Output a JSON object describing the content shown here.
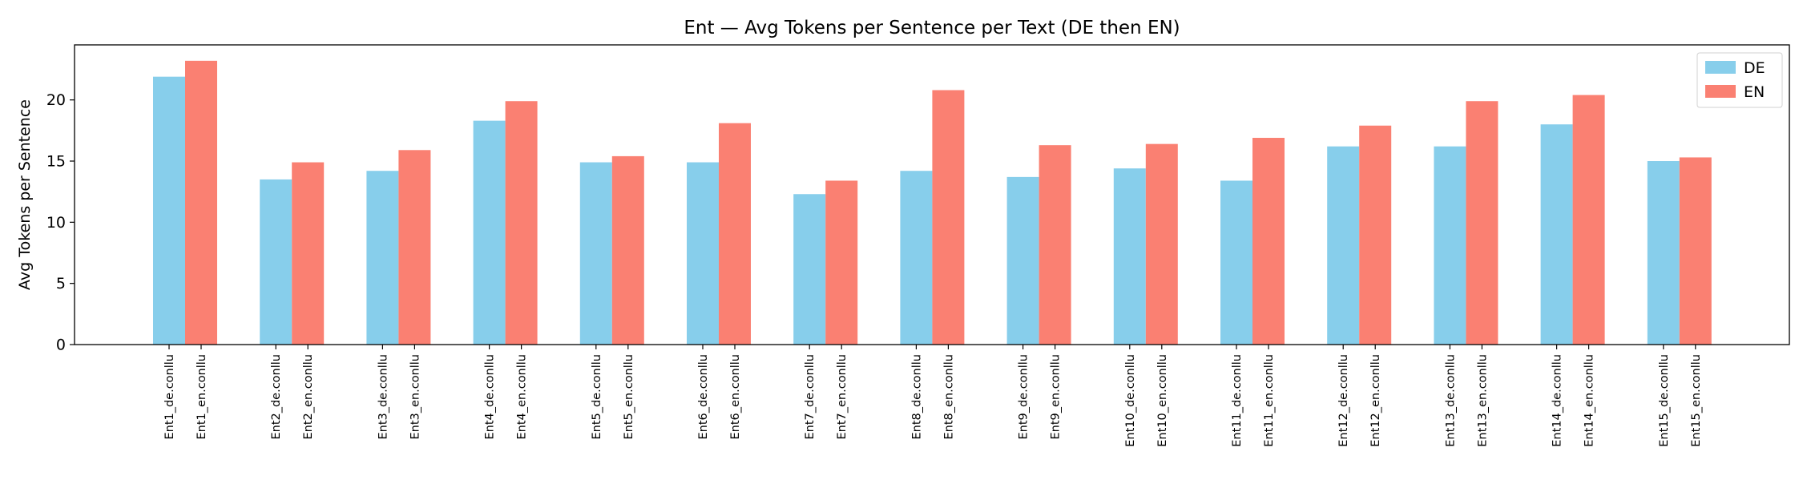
{
  "chart_data": {
    "type": "bar",
    "title": "Ent — Avg Tokens per Sentence per Text (DE then EN)",
    "xlabel": "",
    "ylabel": "Avg Tokens per Sentence",
    "ylim": [
      0,
      24.5
    ],
    "yticks": [
      "0",
      "5",
      "10",
      "15",
      "20"
    ],
    "grid": false,
    "legend_position": "top-right",
    "colors": {
      "DE": "#87CEEB",
      "EN": "#FA8072"
    },
    "texts": [
      "Ent1",
      "Ent2",
      "Ent3",
      "Ent4",
      "Ent5",
      "Ent6",
      "Ent7",
      "Ent8",
      "Ent9",
      "Ent10",
      "Ent11",
      "Ent12",
      "Ent13",
      "Ent14",
      "Ent15"
    ],
    "series": [
      {
        "name": "DE",
        "labels": [
          "Ent1_de.conllu",
          "Ent2_de.conllu",
          "Ent3_de.conllu",
          "Ent4_de.conllu",
          "Ent5_de.conllu",
          "Ent6_de.conllu",
          "Ent7_de.conllu",
          "Ent8_de.conllu",
          "Ent9_de.conllu",
          "Ent10_de.conllu",
          "Ent11_de.conllu",
          "Ent12_de.conllu",
          "Ent13_de.conllu",
          "Ent14_de.conllu",
          "Ent15_de.conllu"
        ],
        "values": [
          21.9,
          13.5,
          14.2,
          18.3,
          14.9,
          14.9,
          12.3,
          14.2,
          13.7,
          14.4,
          13.4,
          16.2,
          16.2,
          18.0,
          15.0
        ]
      },
      {
        "name": "EN",
        "labels": [
          "Ent1_en.conllu",
          "Ent2_en.conllu",
          "Ent3_en.conllu",
          "Ent4_en.conllu",
          "Ent5_en.conllu",
          "Ent6_en.conllu",
          "Ent7_en.conllu",
          "Ent8_en.conllu",
          "Ent9_en.conllu",
          "Ent10_en.conllu",
          "Ent11_en.conllu",
          "Ent12_en.conllu",
          "Ent13_en.conllu",
          "Ent14_en.conllu",
          "Ent15_en.conllu"
        ],
        "values": [
          23.2,
          14.9,
          15.9,
          19.9,
          15.4,
          18.1,
          13.4,
          20.8,
          16.3,
          16.4,
          16.9,
          17.9,
          19.9,
          20.4,
          15.3
        ]
      }
    ]
  }
}
